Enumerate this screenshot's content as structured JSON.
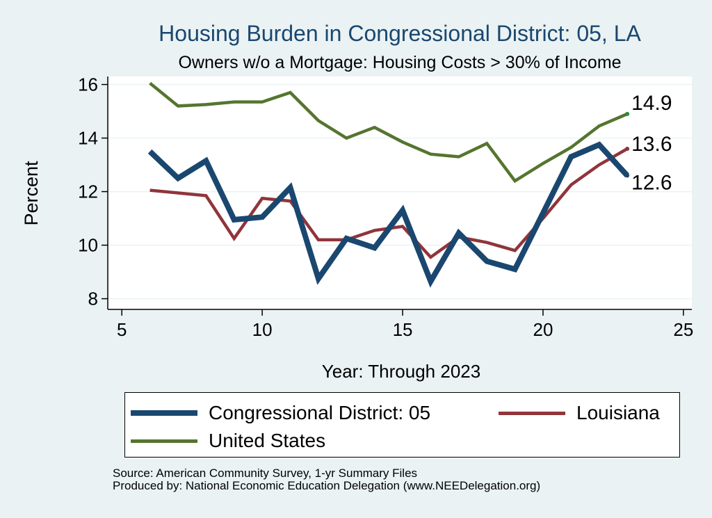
{
  "chart_data": {
    "type": "line",
    "title": "Housing Burden in Congressional District:  05, LA",
    "subtitle": "Owners w/o a Mortgage: Housing Costs > 30% of Income",
    "xlabel": "Year: Through 2023",
    "ylabel": "Percent",
    "xlim": [
      4.5,
      25.3
    ],
    "ylim": [
      7.6,
      16.3
    ],
    "xticks": [
      5,
      10,
      15,
      20,
      25
    ],
    "yticks": [
      8,
      10,
      12,
      14,
      16
    ],
    "grid": true,
    "legend_position": "bottom",
    "x": [
      6,
      7,
      8,
      9,
      10,
      11,
      12,
      13,
      14,
      15,
      16,
      17,
      18,
      19,
      20,
      21,
      22,
      23
    ],
    "series": [
      {
        "name": "Congressional District:  05",
        "color": "#1a476f",
        "width": 8,
        "values": [
          13.5,
          12.5,
          13.15,
          10.95,
          11.05,
          12.15,
          8.75,
          10.25,
          9.9,
          11.3,
          8.65,
          10.45,
          9.4,
          9.1,
          11.2,
          13.3,
          13.75,
          12.6
        ]
      },
      {
        "name": "Louisiana",
        "color": "#90353b",
        "width": 4.5,
        "values": [
          12.05,
          11.95,
          11.85,
          10.25,
          11.75,
          11.65,
          10.2,
          10.2,
          10.55,
          10.7,
          9.55,
          10.3,
          10.1,
          9.8,
          11.0,
          12.25,
          13.0,
          13.6
        ]
      },
      {
        "name": "United States",
        "color": "#55752f",
        "width": 4.5,
        "values": [
          16.05,
          15.2,
          15.25,
          15.35,
          15.35,
          15.7,
          14.65,
          14.0,
          14.4,
          13.85,
          13.4,
          13.3,
          13.8,
          12.4,
          13.05,
          13.65,
          14.45,
          14.9
        ]
      }
    ],
    "end_labels": [
      "14.9",
      "13.6",
      "12.6"
    ],
    "source_lines": [
      "Source: American Community Survey, 1-yr Summary Files",
      "Produced by: National Economic Education Delegation (www.NEEDelegation.org)"
    ]
  },
  "colors": {
    "background": "#eaf2f3",
    "plot_background": "#ffffff",
    "grid": "#eaf2f3"
  }
}
